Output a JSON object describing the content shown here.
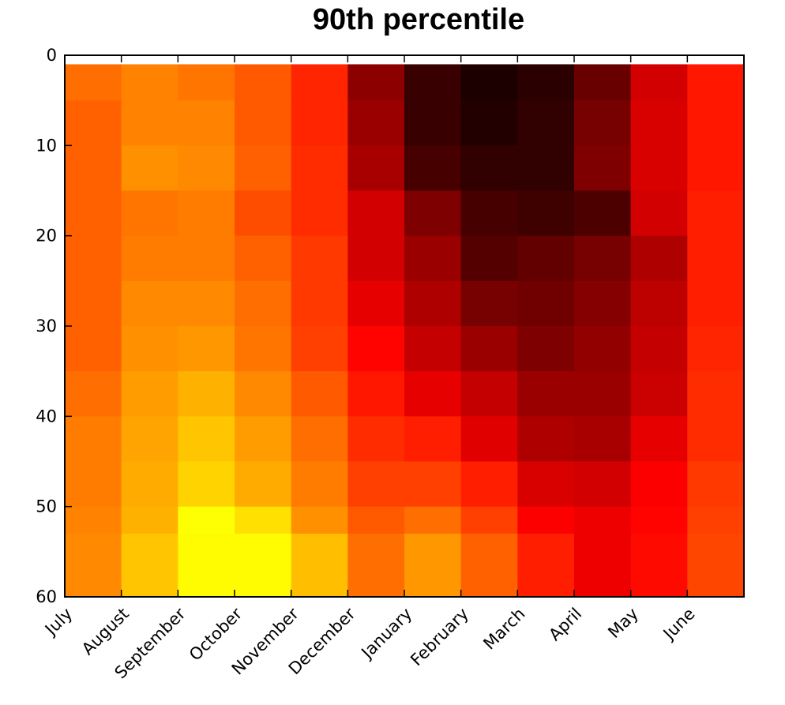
{
  "chart_data": {
    "type": "heatmap",
    "title": "90th percentile",
    "xlabel": "",
    "ylabel": "",
    "colormap": "hot",
    "color_scale_note": "values are normalized colormap positions (0 = black, 1 = yellow/white end of 'hot' colormap); no colorbar shown",
    "x_categories": [
      "July",
      "August",
      "September",
      "October",
      "November",
      "December",
      "January",
      "February",
      "March",
      "April",
      "May",
      "June"
    ],
    "ylim": [
      60,
      0
    ],
    "y_ticks": [
      0,
      10,
      20,
      30,
      40,
      50,
      60
    ],
    "y_tick_labels": [
      "0",
      "10",
      "20",
      "30",
      "40",
      "50",
      "60"
    ],
    "row_edges": [
      1,
      5,
      10,
      15,
      20,
      25,
      30,
      35,
      40,
      45,
      50,
      53,
      60
    ],
    "values": [
      [
        0.53,
        0.56,
        0.54,
        0.5,
        0.42,
        0.2,
        0.08,
        0.04,
        0.06,
        0.15,
        0.3,
        0.4
      ],
      [
        0.51,
        0.56,
        0.56,
        0.5,
        0.42,
        0.22,
        0.08,
        0.05,
        0.07,
        0.17,
        0.31,
        0.4
      ],
      [
        0.51,
        0.58,
        0.57,
        0.51,
        0.43,
        0.24,
        0.1,
        0.07,
        0.07,
        0.18,
        0.31,
        0.4
      ],
      [
        0.51,
        0.54,
        0.55,
        0.48,
        0.43,
        0.3,
        0.18,
        0.1,
        0.09,
        0.11,
        0.3,
        0.41
      ],
      [
        0.51,
        0.55,
        0.55,
        0.51,
        0.45,
        0.3,
        0.22,
        0.12,
        0.14,
        0.17,
        0.25,
        0.41
      ],
      [
        0.51,
        0.57,
        0.57,
        0.53,
        0.45,
        0.33,
        0.25,
        0.17,
        0.16,
        0.19,
        0.27,
        0.41
      ],
      [
        0.51,
        0.58,
        0.59,
        0.54,
        0.46,
        0.37,
        0.28,
        0.22,
        0.18,
        0.21,
        0.28,
        0.42
      ],
      [
        0.53,
        0.6,
        0.63,
        0.57,
        0.5,
        0.4,
        0.33,
        0.28,
        0.22,
        0.22,
        0.29,
        0.43
      ],
      [
        0.55,
        0.61,
        0.66,
        0.6,
        0.53,
        0.43,
        0.41,
        0.32,
        0.25,
        0.24,
        0.33,
        0.43
      ],
      [
        0.55,
        0.62,
        0.68,
        0.62,
        0.55,
        0.46,
        0.46,
        0.41,
        0.31,
        0.3,
        0.36,
        0.45
      ],
      [
        0.56,
        0.63,
        0.75,
        0.7,
        0.58,
        0.5,
        0.53,
        0.46,
        0.36,
        0.34,
        0.37,
        0.46
      ],
      [
        0.57,
        0.66,
        0.74,
        0.74,
        0.65,
        0.53,
        0.59,
        0.51,
        0.41,
        0.34,
        0.38,
        0.47
      ]
    ]
  }
}
